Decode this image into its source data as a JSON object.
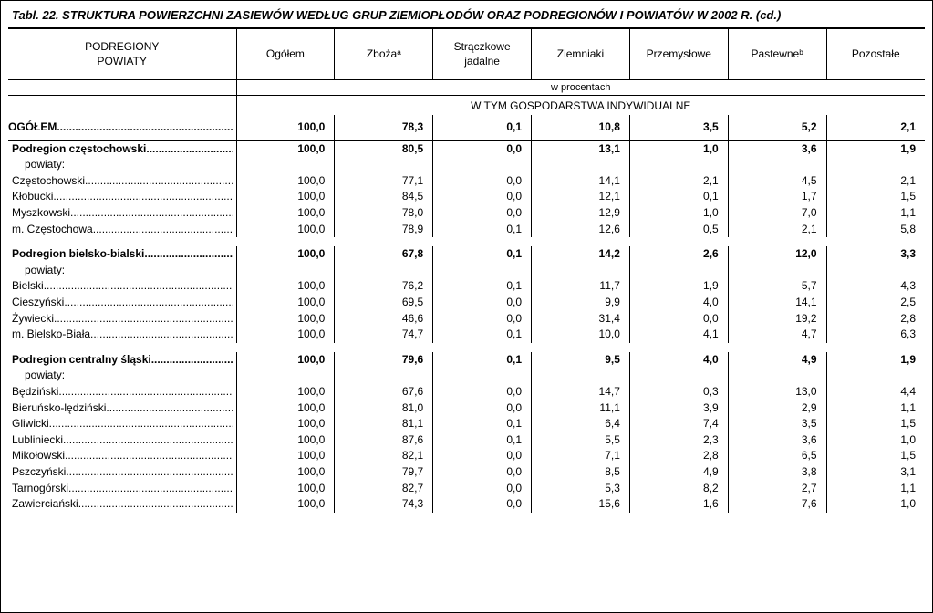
{
  "title": "Tabl. 22. STRUKTURA POWIERZCHNI ZASIEWÓW WEDŁUG GRUP ZIEMIOPŁODÓW ORAZ PODREGIONÓW I POWIATÓW W 2002 R. (cd.)",
  "columns": {
    "c0": "PODREGIONY\nPOWIATY",
    "c1": "Ogółem",
    "c2": "Zbożaᵃ",
    "c3": "Strączkowe jadalne",
    "c4": "Ziemniaki",
    "c5": "Przemysłowe",
    "c6": "Pastewneᵇ",
    "c7": "Pozostałe"
  },
  "subheader": {
    "procentach": "w procentach",
    "wtym": "W TYM GOSPODARSTWA INDYWIDUALNE"
  },
  "rows": [
    {
      "key": "ogolem",
      "label": "OGÓŁEM",
      "bold": true,
      "vals": [
        "100,0",
        "78,3",
        "0,1",
        "10,8",
        "3,5",
        "5,2",
        "2,1"
      ],
      "section": "ogolem"
    },
    {
      "key": "pcz",
      "label": "Podregion częstochowski",
      "bold": true,
      "vals": [
        "100,0",
        "80,5",
        "0,0",
        "13,1",
        "1,0",
        "3,6",
        "1,9"
      ]
    },
    {
      "key": "pcz_pow",
      "label": "powiaty:",
      "indent": true,
      "bold": false,
      "vals": [
        "",
        "",
        "",
        "",
        "",
        "",
        ""
      ]
    },
    {
      "key": "czest",
      "label": "Częstochowski",
      "vals": [
        "100,0",
        "77,1",
        "0,0",
        "14,1",
        "2,1",
        "4,5",
        "2,1"
      ]
    },
    {
      "key": "klob",
      "label": "Kłobucki",
      "vals": [
        "100,0",
        "84,5",
        "0,0",
        "12,1",
        "0,1",
        "1,7",
        "1,5"
      ]
    },
    {
      "key": "mysz",
      "label": "Myszkowski",
      "vals": [
        "100,0",
        "78,0",
        "0,0",
        "12,9",
        "1,0",
        "7,0",
        "1,1"
      ]
    },
    {
      "key": "mczest",
      "label": "m. Częstochowa",
      "vals": [
        "100,0",
        "78,9",
        "0,1",
        "12,6",
        "0,5",
        "2,1",
        "5,8"
      ]
    },
    {
      "key": "spacer1",
      "spacer": true
    },
    {
      "key": "pbb",
      "label": "Podregion bielsko-bialski",
      "bold": true,
      "vals": [
        "100,0",
        "67,8",
        "0,1",
        "14,2",
        "2,6",
        "12,0",
        "3,3"
      ]
    },
    {
      "key": "pbb_pow",
      "label": "powiaty:",
      "indent": true,
      "vals": [
        "",
        "",
        "",
        "",
        "",
        "",
        ""
      ]
    },
    {
      "key": "biel",
      "label": "Bielski",
      "vals": [
        "100,0",
        "76,2",
        "0,1",
        "11,7",
        "1,9",
        "5,7",
        "4,3"
      ]
    },
    {
      "key": "ciesz",
      "label": "Cieszyński",
      "vals": [
        "100,0",
        "69,5",
        "0,0",
        "9,9",
        "4,0",
        "14,1",
        "2,5"
      ]
    },
    {
      "key": "zyw",
      "label": "Żywiecki",
      "vals": [
        "100,0",
        "46,6",
        "0,0",
        "31,4",
        "0,0",
        "19,2",
        "2,8"
      ]
    },
    {
      "key": "mbb",
      "label": "m. Bielsko-Biała",
      "vals": [
        "100,0",
        "74,7",
        "0,1",
        "10,0",
        "4,1",
        "4,7",
        "6,3"
      ]
    },
    {
      "key": "spacer2",
      "spacer": true
    },
    {
      "key": "pcs",
      "label": "Podregion centralny śląski",
      "bold": true,
      "vals": [
        "100,0",
        "79,6",
        "0,1",
        "9,5",
        "4,0",
        "4,9",
        "1,9"
      ]
    },
    {
      "key": "pcs_pow",
      "label": "powiaty:",
      "indent": true,
      "vals": [
        "",
        "",
        "",
        "",
        "",
        "",
        ""
      ]
    },
    {
      "key": "bedz",
      "label": "Będziński",
      "vals": [
        "100,0",
        "67,6",
        "0,0",
        "14,7",
        "0,3",
        "13,0",
        "4,4"
      ]
    },
    {
      "key": "bier",
      "label": "Bieruńsko-lędziński",
      "vals": [
        "100,0",
        "81,0",
        "0,0",
        "11,1",
        "3,9",
        "2,9",
        "1,1"
      ]
    },
    {
      "key": "gliw",
      "label": "Gliwicki",
      "vals": [
        "100,0",
        "81,1",
        "0,1",
        "6,4",
        "7,4",
        "3,5",
        "1,5"
      ]
    },
    {
      "key": "lubl",
      "label": "Lubliniecki",
      "vals": [
        "100,0",
        "87,6",
        "0,1",
        "5,5",
        "2,3",
        "3,6",
        "1,0"
      ]
    },
    {
      "key": "miko",
      "label": "Mikołowski",
      "vals": [
        "100,0",
        "82,1",
        "0,0",
        "7,1",
        "2,8",
        "6,5",
        "1,5"
      ]
    },
    {
      "key": "pszcz",
      "label": "Pszczyński",
      "vals": [
        "100,0",
        "79,7",
        "0,0",
        "8,5",
        "4,9",
        "3,8",
        "3,1"
      ]
    },
    {
      "key": "tarn",
      "label": "Tarnogórski",
      "vals": [
        "100,0",
        "82,7",
        "0,0",
        "5,3",
        "8,2",
        "2,7",
        "1,1"
      ]
    },
    {
      "key": "zaw",
      "label": "Zawierciański",
      "vals": [
        "100,0",
        "74,3",
        "0,0",
        "15,6",
        "1,6",
        "7,6",
        "1,0"
      ]
    }
  ]
}
